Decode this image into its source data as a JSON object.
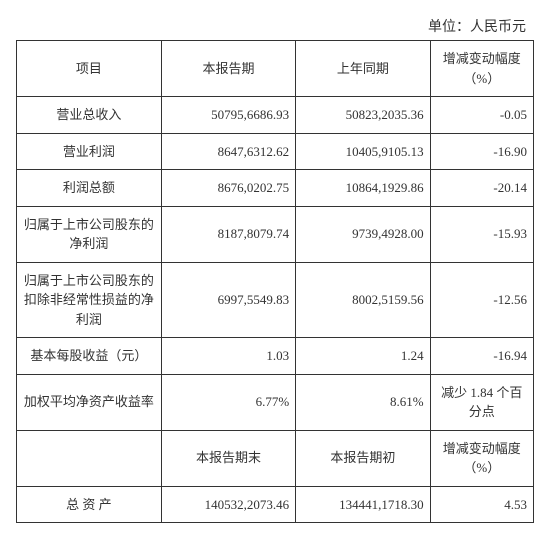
{
  "unit_label": "单位：人民币元",
  "colors": {
    "border": "#333333",
    "text": "#333333",
    "background": "#ffffff"
  },
  "table1": {
    "headers": [
      "项目",
      "本报告期",
      "上年同期",
      "增减变动幅度（%）"
    ],
    "rows": [
      {
        "label": "营业总收入",
        "curr": "50,795,6686.93",
        "prev": "50,823,2035.36",
        "chg": "-0.05",
        "center_chg": false
      },
      {
        "label": "营业利润",
        "curr": "8,647,6312.62",
        "prev": "10,405,9105.13",
        "chg": "-16.90",
        "center_chg": false
      },
      {
        "label": "利润总额",
        "curr": "8,676,0202.75",
        "prev": "10,864,1929.86",
        "chg": "-20.14",
        "center_chg": false
      },
      {
        "label": "归属于上市公司股东的净利润",
        "curr": "8,187,8079.74",
        "prev": "9,739,4928.00",
        "chg": "-15.93",
        "center_chg": false
      },
      {
        "label": "归属于上市公司股东的扣除非经常性损益的净利润",
        "curr": "6,997,5549.83",
        "prev": "8,002,5159.56",
        "chg": "-12.56",
        "center_chg": false
      },
      {
        "label": "基本每股收益（元）",
        "curr": "1.03",
        "prev": "1.24",
        "chg": "-16.94",
        "center_chg": false
      },
      {
        "label": "加权平均净资产收益率",
        "curr": "6.77%",
        "prev": "8.61%",
        "chg": "减少 1.84 个百分点",
        "center_chg": true
      }
    ]
  },
  "table2": {
    "headers": [
      "",
      "本报告期末",
      "本报告期初",
      "增减变动幅度（%）"
    ],
    "rows": [
      {
        "label": "总 资 产",
        "curr": "1,405,322,073.46",
        "prev": "1,344,411,718.30",
        "chg": "4.53",
        "center_chg": false
      }
    ]
  },
  "fix": {
    "t1r0c": "50795,6686.93",
    "t1r0p": "50823,2035.36",
    "t1r1c": "8647,6312.62",
    "t1r1p": "10405,9105.13",
    "t1r2c": "8676,0202.75",
    "t1r2p": "10864,1929.86",
    "t1r3c": "8187,8079.74",
    "t1r3p": "9739,4928.00",
    "t1r4c": "6997,5549.83",
    "t1r4p": "8002,5159.56",
    "t2r0c": "140532,2073.46",
    "t2r0p": "134441,1718.30"
  }
}
